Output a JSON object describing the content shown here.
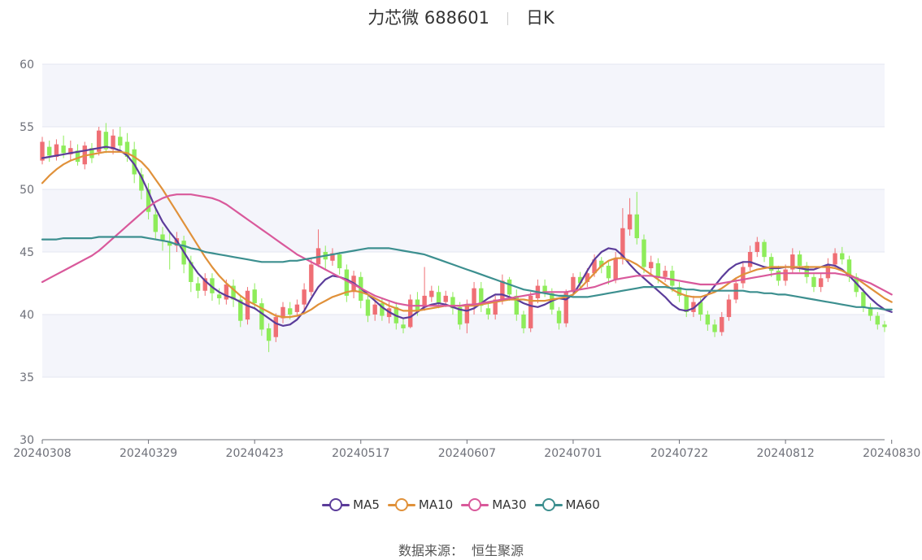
{
  "header": {
    "stock_name": "力芯微 688601",
    "period": "日K"
  },
  "source": {
    "label": "数据来源：",
    "value": "恒生聚源"
  },
  "colors": {
    "up": "#ef6f75",
    "down": "#8eec5a",
    "band": "#f4f5fb",
    "grid": "#e3e6f0",
    "axis": "#6e7079"
  },
  "chart_data": {
    "type": "candlestick",
    "ylim": [
      30,
      60
    ],
    "yticks": [
      30,
      35,
      40,
      45,
      50,
      55,
      60
    ],
    "xticks": [
      "20240308",
      "20240329",
      "20240423",
      "20240517",
      "20240607",
      "20240701",
      "20240722",
      "20240812",
      "20240830"
    ],
    "xtick_index": [
      0,
      15,
      30,
      45,
      60,
      75,
      90,
      105,
      120
    ],
    "grid": true,
    "legend_position": "bottom-center",
    "candles": [
      [
        52.3,
        53.8,
        54.2,
        52.0
      ],
      [
        53.4,
        52.7,
        53.9,
        52.2
      ],
      [
        52.6,
        53.6,
        54.0,
        52.3
      ],
      [
        53.5,
        52.9,
        54.3,
        52.5
      ],
      [
        52.8,
        53.3,
        53.9,
        52.3
      ],
      [
        53.1,
        52.2,
        53.6,
        51.9
      ],
      [
        52.0,
        53.5,
        53.8,
        51.6
      ],
      [
        53.3,
        52.5,
        53.7,
        52.1
      ],
      [
        53.0,
        54.7,
        55.0,
        52.7
      ],
      [
        54.6,
        53.2,
        55.3,
        52.9
      ],
      [
        53.2,
        54.3,
        54.8,
        52.8
      ],
      [
        54.2,
        53.5,
        55.0,
        53.0
      ],
      [
        53.8,
        52.6,
        54.5,
        52.2
      ],
      [
        53.2,
        51.2,
        53.8,
        50.5
      ],
      [
        51.2,
        49.9,
        51.7,
        49.2
      ],
      [
        50.0,
        48.2,
        50.5,
        47.6
      ],
      [
        48.0,
        46.6,
        48.6,
        46.0
      ],
      [
        46.4,
        45.9,
        47.0,
        45.1
      ],
      [
        45.8,
        45.5,
        46.5,
        43.6
      ],
      [
        45.5,
        46.1,
        46.6,
        45.0
      ],
      [
        45.9,
        44.0,
        46.3,
        43.3
      ],
      [
        44.2,
        42.6,
        44.7,
        41.8
      ],
      [
        42.5,
        41.9,
        43.0,
        41.3
      ],
      [
        41.9,
        42.9,
        43.3,
        41.5
      ],
      [
        42.9,
        41.7,
        43.3,
        41.1
      ],
      [
        41.6,
        41.3,
        42.1,
        40.8
      ],
      [
        41.2,
        42.4,
        42.8,
        40.8
      ],
      [
        42.3,
        41.2,
        42.8,
        40.6
      ],
      [
        41.2,
        39.5,
        41.5,
        39.0
      ],
      [
        39.6,
        41.9,
        42.2,
        39.2
      ],
      [
        42.0,
        40.9,
        42.5,
        40.4
      ],
      [
        40.9,
        38.8,
        41.3,
        38.3
      ],
      [
        38.9,
        37.9,
        39.3,
        37.0
      ],
      [
        38.2,
        39.8,
        40.1,
        37.8
      ],
      [
        39.7,
        40.6,
        41.0,
        39.3
      ],
      [
        40.5,
        40.0,
        41.0,
        39.6
      ],
      [
        40.2,
        40.8,
        41.2,
        39.8
      ],
      [
        40.8,
        42.0,
        42.5,
        40.4
      ],
      [
        41.8,
        44.0,
        44.5,
        41.5
      ],
      [
        44.0,
        45.3,
        46.8,
        43.8
      ],
      [
        45.0,
        44.4,
        45.5,
        43.6
      ],
      [
        44.3,
        44.9,
        45.3,
        43.9
      ],
      [
        44.8,
        43.7,
        45.0,
        43.2
      ],
      [
        43.6,
        41.5,
        44.0,
        41.0
      ],
      [
        41.8,
        43.1,
        43.5,
        41.3
      ],
      [
        43.0,
        41.1,
        43.4,
        40.5
      ],
      [
        41.2,
        39.9,
        41.5,
        39.4
      ],
      [
        40.0,
        40.8,
        41.1,
        39.5
      ],
      [
        40.9,
        39.9,
        41.3,
        39.5
      ],
      [
        39.8,
        40.5,
        41.0,
        39.3
      ],
      [
        40.6,
        39.3,
        41.0,
        38.8
      ],
      [
        39.2,
        38.9,
        39.7,
        38.5
      ],
      [
        39.0,
        41.2,
        41.6,
        38.9
      ],
      [
        41.2,
        40.3,
        41.8,
        39.9
      ],
      [
        40.6,
        41.5,
        43.8,
        40.3
      ],
      [
        41.4,
        41.9,
        42.3,
        41.0
      ],
      [
        41.8,
        40.9,
        42.3,
        40.5
      ],
      [
        41.0,
        41.5,
        41.9,
        40.6
      ],
      [
        41.4,
        40.5,
        41.8,
        40.0
      ],
      [
        40.6,
        39.2,
        41.0,
        38.8
      ],
      [
        39.3,
        40.8,
        41.2,
        38.5
      ],
      [
        40.8,
        42.1,
        42.6,
        40.0
      ],
      [
        42.1,
        40.7,
        42.6,
        40.2
      ],
      [
        40.5,
        40.0,
        40.9,
        39.6
      ],
      [
        40.0,
        41.2,
        41.5,
        39.6
      ],
      [
        41.1,
        42.7,
        43.2,
        40.8
      ],
      [
        42.8,
        41.6,
        43.0,
        41.1
      ],
      [
        41.5,
        40.0,
        42.0,
        39.5
      ],
      [
        40.0,
        38.9,
        40.3,
        38.5
      ],
      [
        38.9,
        41.5,
        41.8,
        38.6
      ],
      [
        41.3,
        42.3,
        42.8,
        40.9
      ],
      [
        42.3,
        41.8,
        42.8,
        41.4
      ],
      [
        41.7,
        40.4,
        42.1,
        40.0
      ],
      [
        40.3,
        39.3,
        40.6,
        38.8
      ],
      [
        39.3,
        41.8,
        42.0,
        39.0
      ],
      [
        41.8,
        43.0,
        43.3,
        41.5
      ],
      [
        43.0,
        42.5,
        43.4,
        42.0
      ],
      [
        42.6,
        43.3,
        43.7,
        42.2
      ],
      [
        43.3,
        44.4,
        44.8,
        43.0
      ],
      [
        44.3,
        43.8,
        44.6,
        43.3
      ],
      [
        43.9,
        42.9,
        44.2,
        42.4
      ],
      [
        42.8,
        44.5,
        45.0,
        42.5
      ],
      [
        44.5,
        46.9,
        48.5,
        44.0
      ],
      [
        46.8,
        48.0,
        49.3,
        46.3
      ],
      [
        48.0,
        46.1,
        49.8,
        45.6
      ],
      [
        46.0,
        43.8,
        46.4,
        43.3
      ],
      [
        43.7,
        44.2,
        44.7,
        43.2
      ],
      [
        44.1,
        43.0,
        44.5,
        42.5
      ],
      [
        43.0,
        43.5,
        43.9,
        42.6
      ],
      [
        43.5,
        42.3,
        43.9,
        41.8
      ],
      [
        42.2,
        41.5,
        42.6,
        41.0
      ],
      [
        41.5,
        40.2,
        41.9,
        39.8
      ],
      [
        40.2,
        41.0,
        41.5,
        39.8
      ],
      [
        41.0,
        40.0,
        41.3,
        39.5
      ],
      [
        40.0,
        39.2,
        40.3,
        38.7
      ],
      [
        39.2,
        38.6,
        39.6,
        38.2
      ],
      [
        38.6,
        39.8,
        40.2,
        38.3
      ],
      [
        39.8,
        41.2,
        41.6,
        39.5
      ],
      [
        41.2,
        42.5,
        42.9,
        40.9
      ],
      [
        42.5,
        43.8,
        44.2,
        42.1
      ],
      [
        43.8,
        45.0,
        45.5,
        43.5
      ],
      [
        45.0,
        45.8,
        46.2,
        44.6
      ],
      [
        45.8,
        44.6,
        46.0,
        44.2
      ],
      [
        44.6,
        43.5,
        44.9,
        43.0
      ],
      [
        43.5,
        42.7,
        43.9,
        42.3
      ],
      [
        42.7,
        43.6,
        44.0,
        42.3
      ],
      [
        43.6,
        44.8,
        45.3,
        43.3
      ],
      [
        44.8,
        43.9,
        45.1,
        43.4
      ],
      [
        43.9,
        43.0,
        44.2,
        42.5
      ],
      [
        43.0,
        42.2,
        43.3,
        41.8
      ],
      [
        42.2,
        42.9,
        43.3,
        41.8
      ],
      [
        42.9,
        44.0,
        44.5,
        42.6
      ],
      [
        44.0,
        44.9,
        45.3,
        43.7
      ],
      [
        44.9,
        44.4,
        45.4,
        44.0
      ],
      [
        44.4,
        43.0,
        44.7,
        42.6
      ],
      [
        43.0,
        41.8,
        43.3,
        41.4
      ],
      [
        41.8,
        40.6,
        42.1,
        40.2
      ],
      [
        40.6,
        39.9,
        40.9,
        39.5
      ],
      [
        39.9,
        39.2,
        40.2,
        38.8
      ],
      [
        39.2,
        39.0,
        39.5,
        38.6
      ]
    ],
    "series": [
      {
        "name": "MA5",
        "color": "#5b3c9a",
        "values": [
          52.5,
          52.6,
          52.7,
          52.8,
          52.9,
          53.0,
          53.1,
          53.2,
          53.3,
          53.4,
          53.3,
          53.1,
          52.7,
          52.0,
          51.0,
          49.8,
          48.5,
          47.4,
          46.6,
          45.9,
          45.0,
          44.1,
          43.3,
          42.7,
          42.2,
          41.8,
          41.5,
          41.3,
          41.0,
          40.7,
          40.5,
          40.1,
          39.7,
          39.3,
          39.1,
          39.2,
          39.6,
          40.3,
          41.3,
          42.2,
          42.8,
          43.1,
          43.0,
          42.8,
          42.5,
          42.1,
          41.6,
          41.1,
          40.6,
          40.2,
          39.9,
          39.7,
          39.8,
          40.2,
          40.6,
          40.8,
          40.9,
          40.8,
          40.6,
          40.4,
          40.3,
          40.5,
          40.9,
          41.3,
          41.6,
          41.6,
          41.4,
          41.2,
          40.9,
          40.7,
          40.6,
          40.8,
          41.1,
          41.3,
          41.2,
          41.6,
          42.5,
          43.5,
          44.4,
          45.0,
          45.3,
          45.2,
          44.7,
          44.0,
          43.4,
          42.9,
          42.4,
          41.9,
          41.4,
          40.8,
          40.4,
          40.3,
          40.5,
          41.0,
          41.6,
          42.3,
          43.0,
          43.6,
          44.0,
          44.2,
          44.2,
          44.0,
          43.8,
          43.7,
          43.7,
          43.8,
          43.8,
          43.7,
          43.6,
          43.6,
          43.8,
          44.0,
          43.9,
          43.6,
          43.1,
          42.5,
          41.9,
          41.3,
          40.8,
          40.4,
          40.2
        ]
      },
      {
        "name": "MA10",
        "color": "#e0913a",
        "values": [
          50.5,
          51.1,
          51.6,
          52.0,
          52.3,
          52.5,
          52.7,
          52.8,
          52.9,
          53.0,
          53.0,
          53.0,
          52.9,
          52.6,
          52.2,
          51.6,
          50.8,
          50.0,
          49.1,
          48.2,
          47.3,
          46.4,
          45.5,
          44.6,
          43.8,
          43.1,
          42.5,
          42.0,
          41.5,
          41.1,
          40.8,
          40.5,
          40.2,
          39.9,
          39.8,
          39.8,
          39.9,
          40.1,
          40.4,
          40.8,
          41.1,
          41.4,
          41.6,
          41.8,
          41.9,
          41.8,
          41.6,
          41.3,
          41.0,
          40.7,
          40.5,
          40.3,
          40.3,
          40.3,
          40.4,
          40.5,
          40.6,
          40.7,
          40.7,
          40.7,
          40.7,
          40.7,
          40.8,
          40.9,
          41.0,
          41.1,
          41.2,
          41.2,
          41.2,
          41.1,
          41.1,
          41.1,
          41.2,
          41.3,
          41.4,
          41.6,
          42.1,
          42.7,
          43.3,
          43.9,
          44.3,
          44.5,
          44.5,
          44.3,
          44.0,
          43.6,
          43.2,
          42.8,
          42.4,
          42.0,
          41.7,
          41.5,
          41.4,
          41.4,
          41.6,
          41.8,
          42.1,
          42.5,
          42.9,
          43.2,
          43.4,
          43.6,
          43.7,
          43.8,
          43.8,
          43.8,
          43.8,
          43.8,
          43.8,
          43.8,
          43.8,
          43.8,
          43.7,
          43.5,
          43.2,
          42.9,
          42.5,
          42.1,
          41.7,
          41.3,
          41.0
        ]
      },
      {
        "name": "MA30",
        "color": "#d9599b",
        "values": [
          42.6,
          42.9,
          43.2,
          43.5,
          43.8,
          44.1,
          44.4,
          44.7,
          45.1,
          45.6,
          46.1,
          46.6,
          47.1,
          47.6,
          48.1,
          48.6,
          49.0,
          49.3,
          49.5,
          49.6,
          49.6,
          49.6,
          49.5,
          49.4,
          49.3,
          49.1,
          48.8,
          48.4,
          48.0,
          47.6,
          47.2,
          46.8,
          46.4,
          46.0,
          45.6,
          45.2,
          44.8,
          44.5,
          44.2,
          43.9,
          43.6,
          43.3,
          43.0,
          42.7,
          42.4,
          42.1,
          41.8,
          41.5,
          41.3,
          41.1,
          40.9,
          40.8,
          40.7,
          40.7,
          40.7,
          40.7,
          40.7,
          40.7,
          40.7,
          40.7,
          40.8,
          40.8,
          40.9,
          41.0,
          41.1,
          41.2,
          41.3,
          41.4,
          41.5,
          41.6,
          41.7,
          41.8,
          41.8,
          41.8,
          41.8,
          41.9,
          42.0,
          42.1,
          42.2,
          42.4,
          42.6,
          42.8,
          42.9,
          43.0,
          43.1,
          43.1,
          43.1,
          43.0,
          42.9,
          42.8,
          42.7,
          42.6,
          42.5,
          42.4,
          42.4,
          42.4,
          42.5,
          42.6,
          42.7,
          42.8,
          42.9,
          43.0,
          43.1,
          43.2,
          43.3,
          43.3,
          43.3,
          43.3,
          43.3,
          43.3,
          43.3,
          43.3,
          43.3,
          43.2,
          43.1,
          42.9,
          42.7,
          42.5,
          42.2,
          41.9,
          41.6
        ]
      },
      {
        "name": "MA60",
        "color": "#3c8f8f",
        "values": [
          46.0,
          46.0,
          46.0,
          46.1,
          46.1,
          46.1,
          46.1,
          46.1,
          46.2,
          46.2,
          46.2,
          46.2,
          46.2,
          46.2,
          46.2,
          46.1,
          46.0,
          45.9,
          45.8,
          45.6,
          45.5,
          45.3,
          45.2,
          45.0,
          44.9,
          44.8,
          44.7,
          44.6,
          44.5,
          44.4,
          44.3,
          44.2,
          44.2,
          44.2,
          44.2,
          44.3,
          44.3,
          44.4,
          44.5,
          44.6,
          44.7,
          44.8,
          44.9,
          45.0,
          45.1,
          45.2,
          45.3,
          45.3,
          45.3,
          45.3,
          45.2,
          45.1,
          45.0,
          44.9,
          44.8,
          44.6,
          44.4,
          44.2,
          44.0,
          43.8,
          43.6,
          43.4,
          43.2,
          43.0,
          42.8,
          42.6,
          42.4,
          42.2,
          42.0,
          41.9,
          41.8,
          41.7,
          41.6,
          41.5,
          41.5,
          41.4,
          41.4,
          41.4,
          41.5,
          41.6,
          41.7,
          41.8,
          41.9,
          42.0,
          42.1,
          42.2,
          42.2,
          42.2,
          42.2,
          42.1,
          42.1,
          42.0,
          42.0,
          41.9,
          41.9,
          41.9,
          41.9,
          41.9,
          41.9,
          41.9,
          41.8,
          41.8,
          41.7,
          41.7,
          41.6,
          41.6,
          41.5,
          41.4,
          41.3,
          41.2,
          41.1,
          41.0,
          40.9,
          40.8,
          40.7,
          40.6,
          40.6,
          40.5,
          40.5,
          40.4,
          40.4
        ]
      }
    ]
  }
}
